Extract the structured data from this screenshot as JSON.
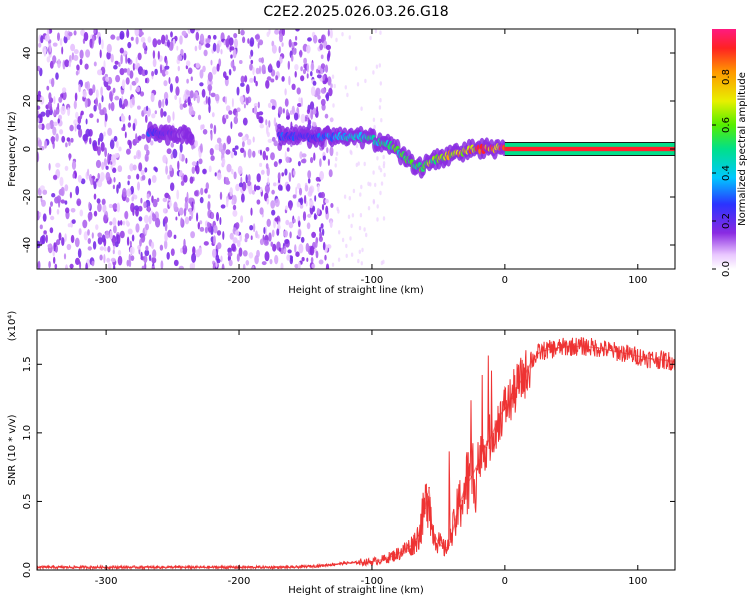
{
  "title": "C2E2.2025.026.03.26.G18",
  "chart_data": [
    {
      "type": "heatmap",
      "xlabel": "Height of straight line (km)",
      "ylabel": "Frequency (Hz)",
      "xlim": [
        -352,
        128
      ],
      "ylim": [
        -50,
        50
      ],
      "x_ticks": [
        -300,
        -200,
        -100,
        0,
        100
      ],
      "y_ticks": [
        -40,
        -20,
        0,
        20,
        40
      ],
      "colorbar": {
        "label": "Normalized spectral amplitude",
        "range": [
          0,
          1
        ],
        "ticks": [
          0.0,
          0.2,
          0.4,
          0.6,
          0.8
        ],
        "tick_labels": [
          "0.0",
          "0.2",
          "0.4",
          "0.6",
          "0.8"
        ]
      },
      "ridge": [
        {
          "x": -268,
          "y": 7,
          "amp": 0.3
        },
        {
          "x": -255,
          "y": 6,
          "amp": 0.2
        },
        {
          "x": -240,
          "y": 6,
          "amp": 0.15
        },
        {
          "x": -162,
          "y": 5,
          "amp": 0.3
        },
        {
          "x": -150,
          "y": 5,
          "amp": 0.25
        },
        {
          "x": -135,
          "y": 5,
          "amp": 0.35
        },
        {
          "x": -120,
          "y": 5,
          "amp": 0.45
        },
        {
          "x": -105,
          "y": 5,
          "amp": 0.5
        },
        {
          "x": -95,
          "y": 3,
          "amp": 0.5
        },
        {
          "x": -85,
          "y": 1,
          "amp": 0.55
        },
        {
          "x": -78,
          "y": -2,
          "amp": 0.6
        },
        {
          "x": -70,
          "y": -6,
          "amp": 0.6
        },
        {
          "x": -62,
          "y": -8,
          "amp": 0.65
        },
        {
          "x": -55,
          "y": -5,
          "amp": 0.7
        },
        {
          "x": -45,
          "y": -3,
          "amp": 0.75
        },
        {
          "x": -35,
          "y": -2,
          "amp": 0.8
        },
        {
          "x": -25,
          "y": 0,
          "amp": 0.85
        },
        {
          "x": -12,
          "y": 0,
          "amp": 0.9
        },
        {
          "x": 0,
          "y": 1,
          "amp": 0.95
        },
        {
          "x": 60,
          "y": 0,
          "amp": 1.0
        },
        {
          "x": 128,
          "y": 0,
          "amp": 1.0
        }
      ]
    },
    {
      "type": "line",
      "xlabel": "Height of straight line (km)",
      "ylabel": "SNR (10 * v/v)",
      "y_multiplier": "(x10⁴)",
      "xlim": [
        -352,
        128
      ],
      "ylim": [
        0,
        1.75
      ],
      "x_ticks": [
        -300,
        -200,
        -100,
        0,
        100
      ],
      "y_ticks": [
        0.0,
        0.5,
        1.0,
        1.5
      ],
      "y_tick_labels": [
        "0.0",
        "0.5",
        "1.0",
        "1.5"
      ],
      "color": "#ee3333",
      "series": [
        {
          "x": [
            -352,
            -300,
            -250,
            -200,
            -160,
            -140,
            -120,
            -100,
            -90,
            -80,
            -70,
            -65,
            -60,
            -57,
            -55,
            -50,
            -45,
            -42,
            -40,
            -35,
            -30,
            -25,
            -20,
            -15,
            -10,
            -5,
            0,
            5,
            10,
            15,
            20,
            25,
            30,
            40,
            50,
            60,
            70,
            80,
            90,
            100,
            110,
            120,
            128
          ],
          "y": [
            0.02,
            0.02,
            0.02,
            0.02,
            0.02,
            0.03,
            0.05,
            0.06,
            0.08,
            0.12,
            0.18,
            0.25,
            0.45,
            0.6,
            0.3,
            0.2,
            0.15,
            0.18,
            0.25,
            0.45,
            0.6,
            0.68,
            0.78,
            0.9,
            0.98,
            1.1,
            1.18,
            1.25,
            1.35,
            1.42,
            1.52,
            1.58,
            1.6,
            1.62,
            1.63,
            1.63,
            1.62,
            1.6,
            1.58,
            1.56,
            1.54,
            1.53,
            1.52
          ]
        }
      ]
    }
  ]
}
